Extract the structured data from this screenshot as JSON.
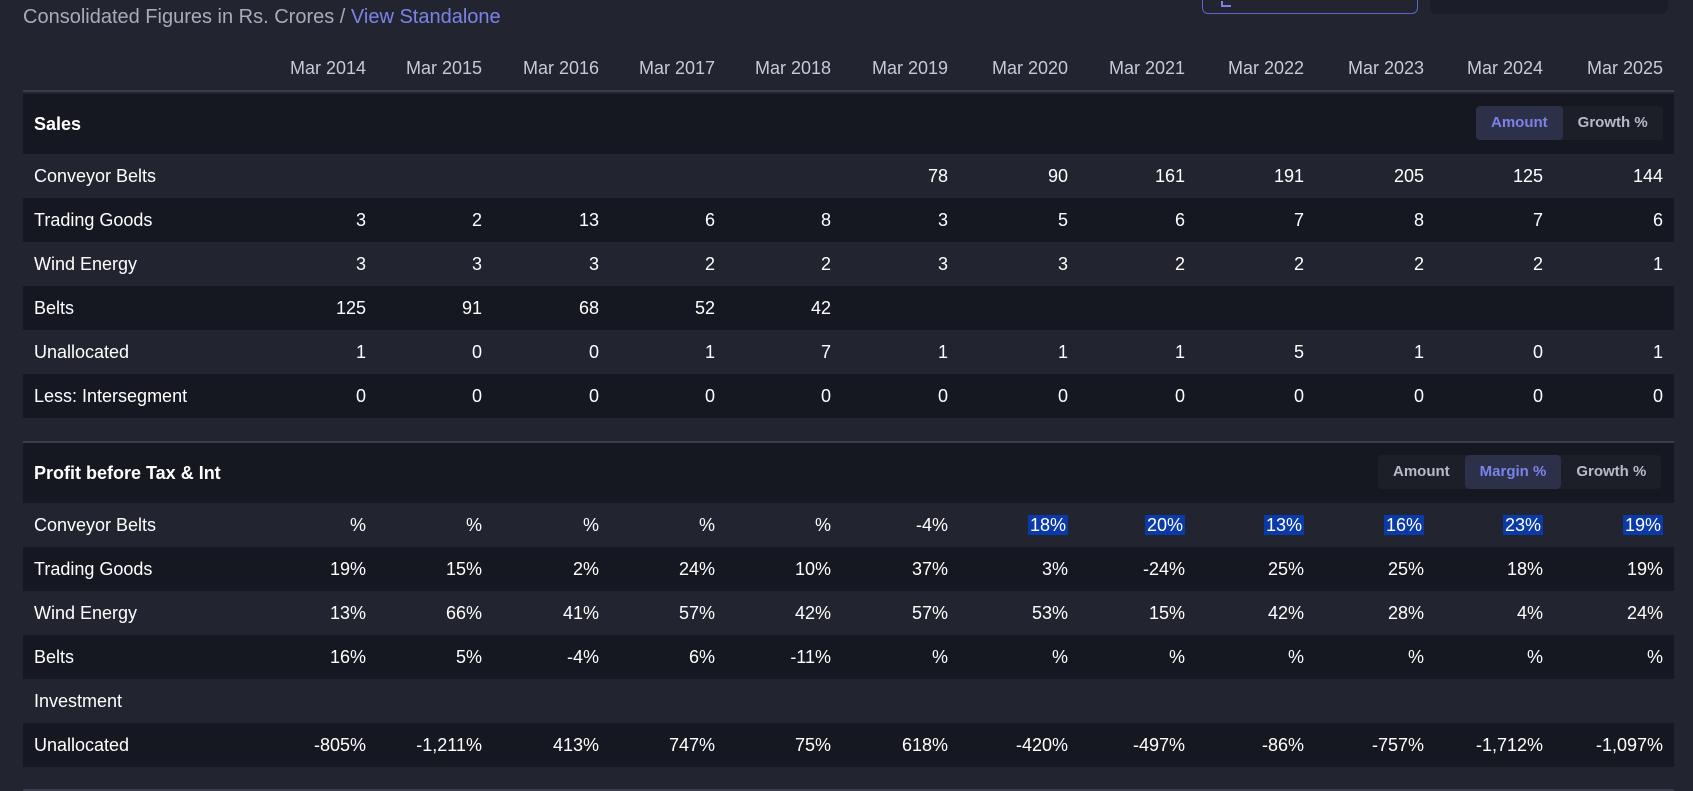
{
  "header": {
    "title_prefix": "Consolidated Figures in Rs. Crores / ",
    "link": "View Standalone"
  },
  "years": [
    "Mar 2014",
    "Mar 2015",
    "Mar 2016",
    "Mar 2017",
    "Mar 2018",
    "Mar 2019",
    "Mar 2020",
    "Mar 2021",
    "Mar 2022",
    "Mar 2023",
    "Mar 2024",
    "Mar 2025"
  ],
  "sales": {
    "title": "Sales",
    "toggle": [
      "Amount",
      "Growth %"
    ],
    "active": "Amount",
    "rows": [
      {
        "label": "Conveyor Belts",
        "values": [
          "",
          "",
          "",
          "",
          "",
          "78",
          "90",
          "161",
          "191",
          "205",
          "125",
          "144"
        ]
      },
      {
        "label": "Trading Goods",
        "values": [
          "3",
          "2",
          "13",
          "6",
          "8",
          "3",
          "5",
          "6",
          "7",
          "8",
          "7",
          "6"
        ]
      },
      {
        "label": "Wind Energy",
        "values": [
          "3",
          "3",
          "3",
          "2",
          "2",
          "3",
          "3",
          "2",
          "2",
          "2",
          "2",
          "1"
        ]
      },
      {
        "label": "Belts",
        "values": [
          "125",
          "91",
          "68",
          "52",
          "42",
          "",
          "",
          "",
          "",
          "",
          "",
          ""
        ]
      },
      {
        "label": "Unallocated",
        "values": [
          "1",
          "0",
          "0",
          "1",
          "7",
          "1",
          "1",
          "1",
          "5",
          "1",
          "0",
          "1"
        ]
      },
      {
        "label": "Less: Intersegment",
        "values": [
          "0",
          "0",
          "0",
          "0",
          "0",
          "0",
          "0",
          "0",
          "0",
          "0",
          "0",
          "0"
        ]
      }
    ]
  },
  "profit": {
    "title": "Profit before Tax & Int",
    "toggle": [
      "Amount",
      "Margin %",
      "Growth %"
    ],
    "active": "Margin %",
    "rows": [
      {
        "label": "Conveyor Belts",
        "values": [
          "%",
          "%",
          "%",
          "%",
          "%",
          "-4%",
          "18%",
          "20%",
          "13%",
          "16%",
          "23%",
          "19%"
        ],
        "highlight": [
          6,
          7,
          8,
          9,
          10,
          11
        ]
      },
      {
        "label": "Trading Goods",
        "values": [
          "19%",
          "15%",
          "2%",
          "24%",
          "10%",
          "37%",
          "3%",
          "-24%",
          "25%",
          "25%",
          "18%",
          "19%"
        ]
      },
      {
        "label": "Wind Energy",
        "values": [
          "13%",
          "66%",
          "41%",
          "57%",
          "42%",
          "57%",
          "53%",
          "15%",
          "42%",
          "28%",
          "4%",
          "24%"
        ]
      },
      {
        "label": "Belts",
        "values": [
          "16%",
          "5%",
          "-4%",
          "6%",
          "-11%",
          "%",
          "%",
          "%",
          "%",
          "%",
          "%",
          "%"
        ]
      },
      {
        "label": "Investment",
        "values": [
          "",
          "",
          "",
          "",
          "",
          "",
          "",
          "",
          "",
          "",
          "",
          ""
        ]
      },
      {
        "label": "Unallocated",
        "values": [
          "-805%",
          "-1,211%",
          "413%",
          "747%",
          "75%",
          "618%",
          "-420%",
          "-497%",
          "-86%",
          "-757%",
          "-1,712%",
          "-1,097%"
        ]
      }
    ]
  }
}
